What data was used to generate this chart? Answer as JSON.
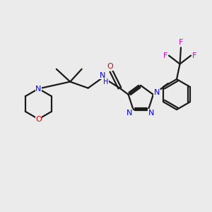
{
  "background_color": "#ebebeb",
  "bond_color": "#1a1a1a",
  "nitrogen_color": "#0000ee",
  "oxygen_color": "#dd0000",
  "fluorine_color": "#cc00cc",
  "figsize": [
    3.0,
    3.0
  ],
  "dpi": 100,
  "xlim": [
    0,
    10
  ],
  "ylim": [
    0,
    10
  ]
}
